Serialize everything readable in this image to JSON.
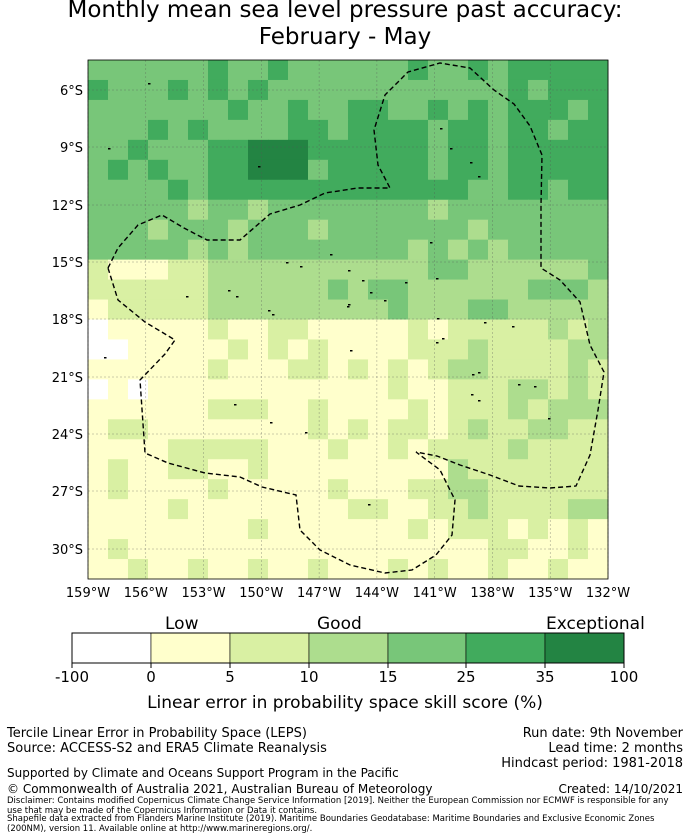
{
  "title": {
    "line1": "Monthly mean sea level pressure past accuracy:",
    "line2": "February - May"
  },
  "map": {
    "lat_labels": [
      "6°S",
      "9°S",
      "12°S",
      "15°S",
      "18°S",
      "21°S",
      "24°S",
      "27°S",
      "30°S"
    ],
    "lon_labels": [
      "159°W",
      "156°W",
      "153°W",
      "150°W",
      "147°W",
      "144°W",
      "141°W",
      "138°W",
      "135°W",
      "132°W"
    ],
    "lon_range": [
      -159,
      -132
    ],
    "lat_range": [
      -31.5,
      -4.5
    ],
    "boundary_style": "dashed",
    "region_summary": [
      {
        "area": "north (5°S-13°S)",
        "category": "25-35 / 35-100"
      },
      {
        "area": "central (13°S-18°S)",
        "category": "10-25"
      },
      {
        "area": "south-west (18°S-31°S)",
        "category": "0-10"
      },
      {
        "area": "south-east (18°S-31°S)",
        "category": "5-25"
      }
    ]
  },
  "colorbar": {
    "categories": [
      "Low",
      "Good",
      "Exceptional"
    ],
    "ticks": [
      "-100",
      "0",
      "5",
      "10",
      "15",
      "25",
      "35",
      "100"
    ],
    "colors": [
      "#ffffff",
      "#ffffcc",
      "#d9f0a3",
      "#addd8e",
      "#78c679",
      "#41ab5d",
      "#238443"
    ],
    "axis_label": "Linear error in probability space skill score (%)"
  },
  "footer": {
    "left1": "Tercile Linear Error in Probability Space (LEPS)",
    "left2": "Source: ACCESS-S2 and ERA5 Climate Reanalysis",
    "right1": "Run date: 9th November",
    "right2": "Lead time: 2 months",
    "right3": "Hindcast period: 1981-2018",
    "support": "Supported by Climate and Oceans Support Program in the Pacific",
    "copyright": "© Commonwealth of Australia 2021, Australian Bureau of Meteorology",
    "created": "Created: 14/10/2021",
    "disclaimer": "Disclaimer: Contains modified Copernicus Climate Change Service Information [2019]. Neither the European Commission nor ECMWF is responsible for any use that may be made of the Copernicus Information or Data it contains.",
    "shapefile": "Shapefile data extracted from Flanders Marine Institute (2019). Maritime Boundaries Geodatabase: Maritime Boundaries and Exclusive Economic Zones (200NM), version 11. Available online at http://www.marineregions.org/."
  }
}
